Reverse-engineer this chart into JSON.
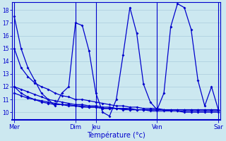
{
  "background_color": "#cce8f0",
  "grid_color": "#aaccdd",
  "line_color": "#0000cc",
  "xlabel": "Température (°c)",
  "day_labels": [
    "Mer",
    "Dim",
    "Jeu",
    "Ven",
    "Sar"
  ],
  "day_x": [
    0,
    9,
    12,
    21,
    30
  ],
  "ylim": [
    9.4,
    18.6
  ],
  "yticks": [
    10,
    11,
    12,
    13,
    14,
    15,
    16,
    17,
    18
  ],
  "xlim": [
    -0.3,
    30.3
  ],
  "n_points": 31,
  "zigzag": [
    17.5,
    15.0,
    13.5,
    12.5,
    11.5,
    11.0,
    10.5,
    11.5,
    12.0,
    17.0,
    16.8,
    14.8,
    11.5,
    10.0,
    9.7,
    11.0,
    14.5,
    18.2,
    16.2,
    12.2,
    10.8,
    10.2,
    11.5,
    16.7,
    18.5,
    18.2,
    16.5,
    12.5,
    10.5,
    12.0,
    10.2
  ],
  "flat1": [
    15.0,
    13.5,
    12.8,
    12.3,
    12.0,
    11.8,
    11.5,
    11.3,
    11.2,
    11.0,
    11.0,
    10.9,
    10.8,
    10.7,
    10.6,
    10.5,
    10.5,
    10.4,
    10.4,
    10.3,
    10.3,
    10.3,
    10.2,
    10.2,
    10.2,
    10.2,
    10.2,
    10.2,
    10.2,
    10.2,
    10.2
  ],
  "flat2": [
    12.0,
    11.5,
    11.2,
    11.0,
    10.8,
    10.7,
    10.6,
    10.6,
    10.5,
    10.5,
    10.4,
    10.4,
    10.4,
    10.3,
    10.3,
    10.3,
    10.3,
    10.2,
    10.2,
    10.2,
    10.2,
    10.2,
    10.2,
    10.1,
    10.1,
    10.1,
    10.1,
    10.1,
    10.1,
    10.1,
    10.1
  ],
  "flat3": [
    12.0,
    11.8,
    11.6,
    11.4,
    11.2,
    11.0,
    10.9,
    10.8,
    10.7,
    10.6,
    10.6,
    10.5,
    10.5,
    10.4,
    10.4,
    10.3,
    10.3,
    10.3,
    10.2,
    10.2,
    10.2,
    10.2,
    10.2,
    10.2,
    10.2,
    10.2,
    10.2,
    10.2,
    10.2,
    10.2,
    10.2
  ],
  "flat4": [
    11.5,
    11.3,
    11.1,
    11.0,
    10.9,
    10.8,
    10.7,
    10.6,
    10.6,
    10.5,
    10.5,
    10.4,
    10.4,
    10.3,
    10.3,
    10.3,
    10.2,
    10.2,
    10.2,
    10.2,
    10.1,
    10.1,
    10.1,
    10.1,
    10.1,
    10.0,
    10.0,
    10.0,
    10.0,
    10.0,
    10.0
  ]
}
